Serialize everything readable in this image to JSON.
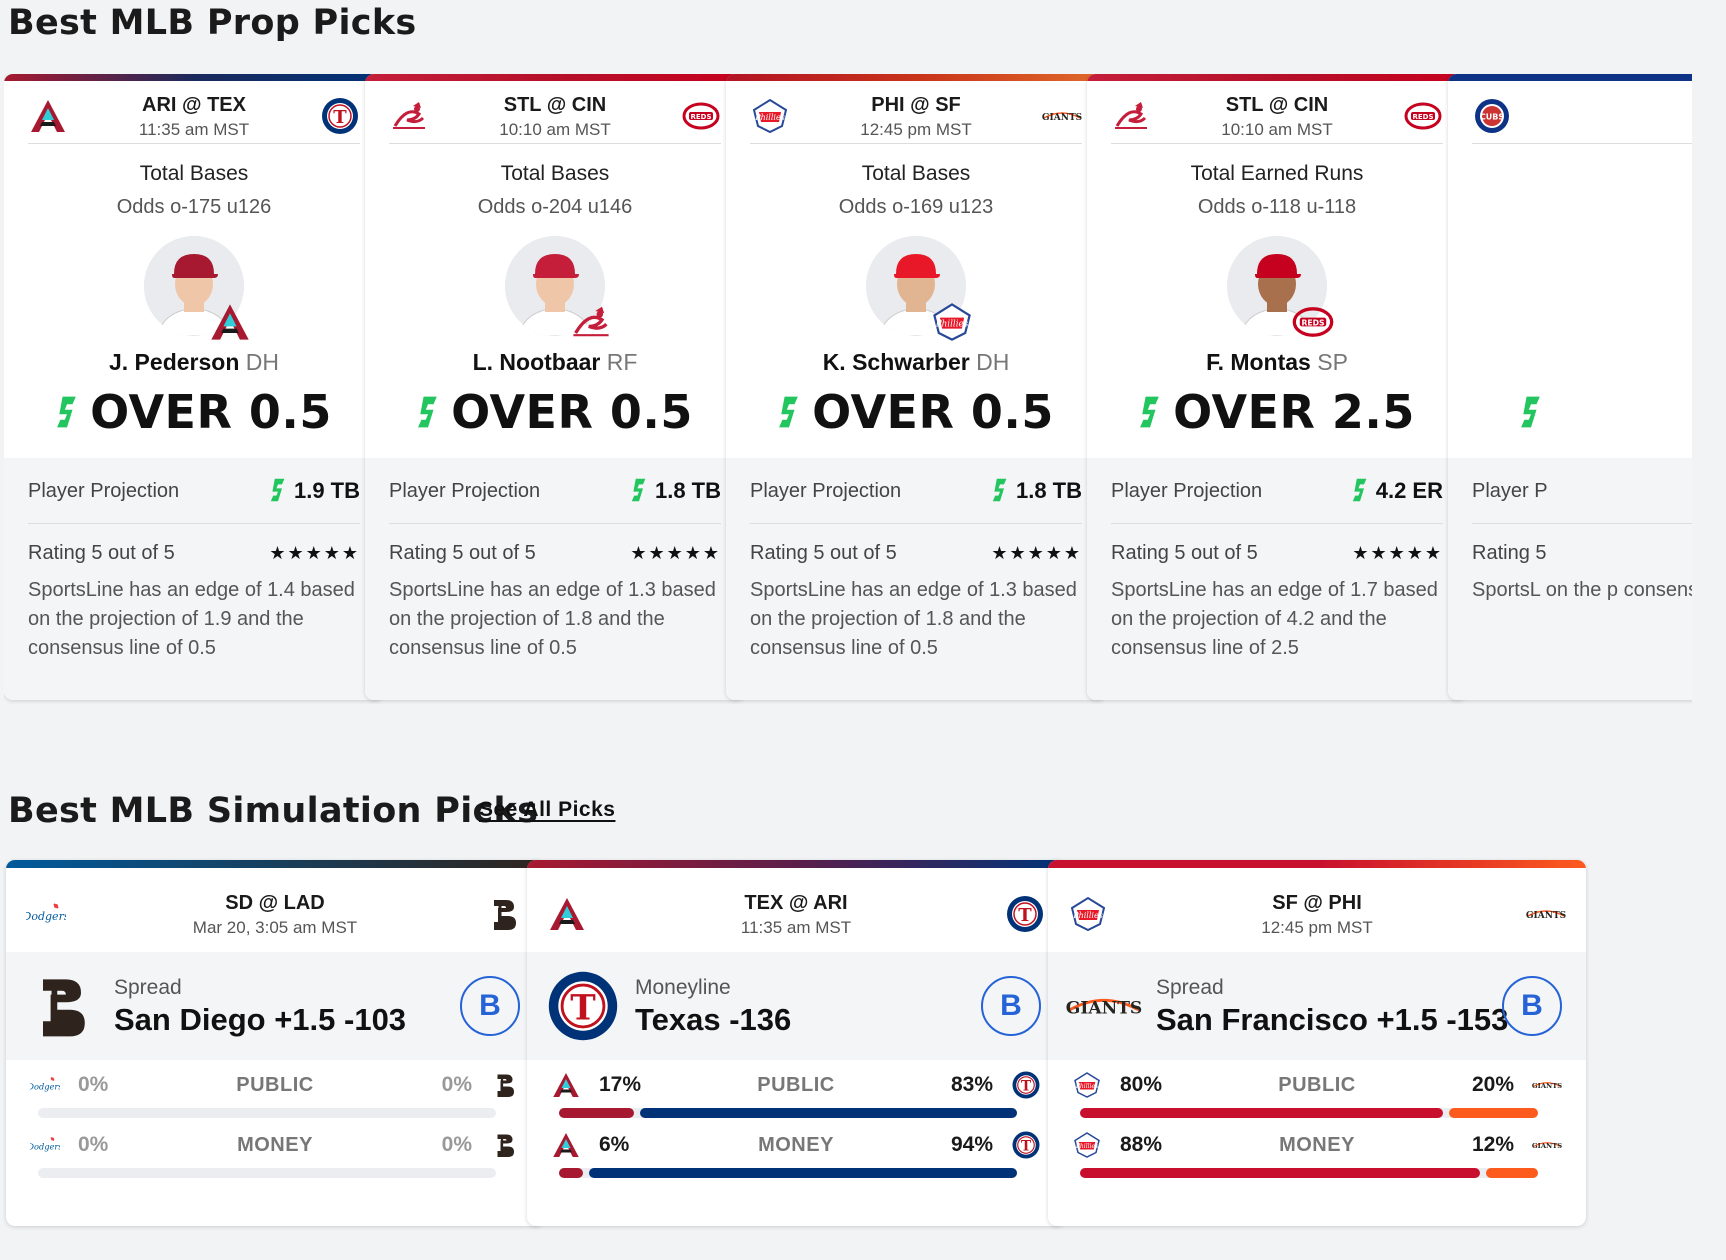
{
  "sections": {
    "props_title": "Best MLB Prop Picks",
    "sim_title": "Best MLB Simulation Picks",
    "see_all": "See All Picks"
  },
  "colors": {
    "accent_green": "#22c55e",
    "grade_blue": "#2563d6",
    "phillies_red": "#c8102e",
    "giants_orange": "#fd5a1e",
    "rangers_blue": "#003278",
    "dbacks_red": "#a71930"
  },
  "prop_cards": [
    {
      "matchup": "ARI @ TEX",
      "time": "11:35 am MST",
      "left_logo": "dbacks-logo",
      "right_logo": "rangers-logo",
      "market": "Total Bases",
      "odds": "Odds o-175 u126",
      "player": "J. Pederson",
      "pos": "DH",
      "pick": "OVER 0.5",
      "proj_label": "Player Projection",
      "proj": "1.9 TB",
      "rating": "Rating 5 out of 5",
      "stars": "★★★★★",
      "desc": "SportsLine has an edge of 1.4 based on the projection of 1.9 and the consensus line of 0.5"
    },
    {
      "matchup": "STL @ CIN",
      "time": "10:10 am MST",
      "left_logo": "cardinals-logo",
      "right_logo": "reds-logo",
      "market": "Total Bases",
      "odds": "Odds o-204 u146",
      "player": "L. Nootbaar",
      "pos": "RF",
      "pick": "OVER 0.5",
      "proj_label": "Player Projection",
      "proj": "1.8 TB",
      "rating": "Rating 5 out of 5",
      "stars": "★★★★★",
      "desc": "SportsLine has an edge of 1.3 based on the projection of 1.8 and the consensus line of 0.5"
    },
    {
      "matchup": "PHI @ SF",
      "time": "12:45 pm MST",
      "left_logo": "phillies-logo",
      "right_logo": "giants-logo",
      "market": "Total Bases",
      "odds": "Odds o-169 u123",
      "player": "K. Schwarber",
      "pos": "DH",
      "pick": "OVER 0.5",
      "proj_label": "Player Projection",
      "proj": "1.8 TB",
      "rating": "Rating 5 out of 5",
      "stars": "★★★★★",
      "desc": "SportsLine has an edge of 1.3 based on the projection of 1.8 and the consensus line of 0.5"
    },
    {
      "matchup": "STL @ CIN",
      "time": "10:10 am MST",
      "left_logo": "cardinals-logo",
      "right_logo": "reds-logo",
      "market": "Total Earned Runs",
      "odds": "Odds o-118 u-118",
      "player": "F. Montas",
      "pos": "SP",
      "pick": "OVER 2.5",
      "proj_label": "Player Projection",
      "proj": "4.2 ER",
      "rating": "Rating 5 out of 5",
      "stars": "★★★★★",
      "desc": "SportsLine has an edge of 1.7 based on the projection of 4.2 and the consensus line of 2.5"
    },
    {
      "matchup": "",
      "time": "",
      "left_logo": "cubs-logo",
      "right_logo": "",
      "market": "",
      "odds": "",
      "player": "",
      "pos": "",
      "pick": "",
      "proj_label": "Player P",
      "proj": "",
      "rating": "Rating 5",
      "stars": "",
      "desc": "SportsL on the p consens"
    }
  ],
  "sim_cards": [
    {
      "matchup": "SD @ LAD",
      "time": "Mar 20, 3:05 am MST",
      "pick_type": "Spread",
      "pick": "San Diego +1.5 -103",
      "grade": "B",
      "public_label": "PUBLIC",
      "money_label": "MONEY",
      "public_left": "0%",
      "public_right": "0%",
      "money_left": "0%",
      "money_right": "0%",
      "public_left_frac": 0,
      "public_right_frac": 0,
      "money_left_frac": 0,
      "money_right_frac": 0
    },
    {
      "matchup": "TEX @ ARI",
      "time": "11:35 am MST",
      "pick_type": "Moneyline",
      "pick": "Texas -136",
      "grade": "B",
      "public_label": "PUBLIC",
      "money_label": "MONEY",
      "public_left": "17%",
      "public_right": "83%",
      "money_left": "6%",
      "money_right": "94%",
      "public_left_frac": 0.17,
      "public_right_frac": 0.83,
      "money_left_frac": 0.06,
      "money_right_frac": 0.94
    },
    {
      "matchup": "SF @ PHI",
      "time": "12:45 pm MST",
      "pick_type": "Spread",
      "pick": "San Francisco +1.5 -153",
      "grade": "B",
      "public_label": "PUBLIC",
      "money_label": "MONEY",
      "public_left": "80%",
      "public_right": "20%",
      "money_left": "88%",
      "money_right": "12%",
      "public_left_frac": 0.8,
      "public_right_frac": 0.2,
      "money_left_frac": 0.88,
      "money_right_frac": 0.12
    }
  ]
}
